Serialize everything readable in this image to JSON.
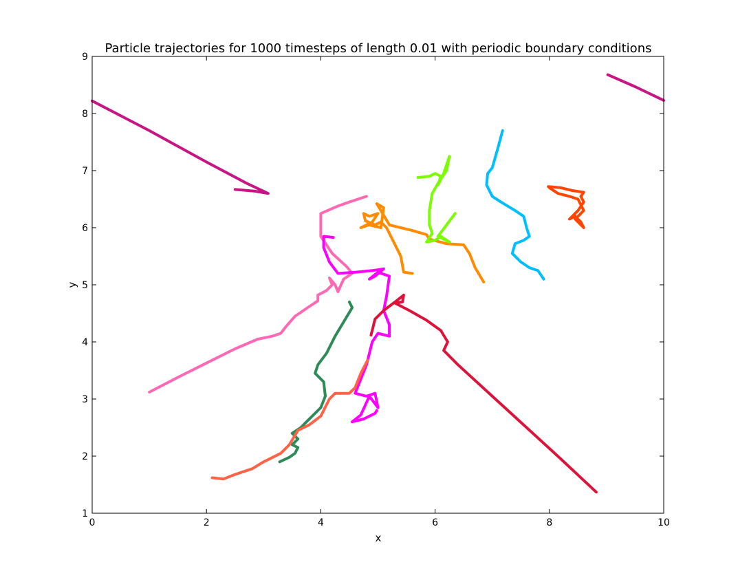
{
  "chart_data": {
    "type": "line",
    "title": "Particle trajectories for 1000 timesteps of length 0.01 with periodic boundary conditions",
    "xlabel": "x",
    "ylabel": "y",
    "xlim": [
      0,
      10
    ],
    "ylim": [
      1,
      9
    ],
    "xticks": [
      "0",
      "2",
      "4",
      "6",
      "8",
      "10"
    ],
    "yticks": [
      "1",
      "2",
      "3",
      "4",
      "5",
      "6",
      "7",
      "8",
      "9"
    ],
    "grid": false,
    "legend": false,
    "series": [
      {
        "color": "#c71585",
        "points": [
          [
            0.0,
            8.22
          ],
          [
            1.0,
            7.7
          ],
          [
            2.0,
            7.15
          ],
          [
            2.7,
            6.78
          ],
          [
            3.08,
            6.6
          ],
          [
            2.85,
            6.64
          ],
          [
            2.5,
            6.67
          ]
        ]
      },
      {
        "color": "#c71585",
        "points": [
          [
            9.02,
            8.68
          ],
          [
            9.5,
            8.47
          ],
          [
            10.0,
            8.23
          ]
        ]
      },
      {
        "color": "#ff69b4",
        "points": [
          [
            1.0,
            3.12
          ],
          [
            1.5,
            3.38
          ],
          [
            2.0,
            3.63
          ],
          [
            2.5,
            3.88
          ],
          [
            2.9,
            4.05
          ],
          [
            3.15,
            4.1
          ],
          [
            3.3,
            4.15
          ],
          [
            3.4,
            4.28
          ],
          [
            3.55,
            4.45
          ],
          [
            3.8,
            4.62
          ],
          [
            3.95,
            4.72
          ],
          [
            3.95,
            4.82
          ],
          [
            4.1,
            4.9
          ],
          [
            4.2,
            5.0
          ],
          [
            4.15,
            5.12
          ],
          [
            4.25,
            5.0
          ],
          [
            4.3,
            4.88
          ],
          [
            4.4,
            5.1
          ],
          [
            4.55,
            5.2
          ],
          [
            4.45,
            5.32
          ],
          [
            4.2,
            5.55
          ],
          [
            4.0,
            5.85
          ],
          [
            4.0,
            6.25
          ],
          [
            4.3,
            6.38
          ],
          [
            4.5,
            6.45
          ],
          [
            4.8,
            6.55
          ]
        ]
      },
      {
        "color": "#ff00ff",
        "points": [
          [
            4.22,
            5.83
          ],
          [
            4.05,
            5.85
          ],
          [
            4.05,
            5.65
          ],
          [
            4.15,
            5.4
          ],
          [
            4.3,
            5.2
          ],
          [
            4.6,
            5.22
          ],
          [
            4.9,
            5.25
          ],
          [
            5.1,
            5.28
          ],
          [
            4.95,
            5.15
          ],
          [
            4.85,
            5.1
          ],
          [
            5.0,
            5.22
          ],
          [
            5.2,
            5.15
          ],
          [
            5.15,
            4.8
          ],
          [
            5.1,
            4.55
          ],
          [
            5.2,
            4.3
          ],
          [
            5.2,
            4.1
          ],
          [
            5.0,
            4.15
          ],
          [
            4.9,
            4.0
          ],
          [
            4.8,
            3.6
          ],
          [
            4.7,
            3.35
          ],
          [
            4.6,
            3.1
          ],
          [
            4.8,
            3.05
          ],
          [
            4.95,
            3.1
          ],
          [
            5.0,
            2.85
          ],
          [
            4.85,
            3.05
          ],
          [
            4.7,
            2.72
          ],
          [
            4.55,
            2.6
          ],
          [
            4.75,
            2.65
          ],
          [
            4.95,
            2.75
          ],
          [
            4.98,
            2.8
          ]
        ]
      },
      {
        "color": "#dc143c",
        "points": [
          [
            4.88,
            4.12
          ],
          [
            4.95,
            4.4
          ],
          [
            5.1,
            4.55
          ],
          [
            5.3,
            4.7
          ],
          [
            5.45,
            4.82
          ],
          [
            5.43,
            4.7
          ],
          [
            5.3,
            4.68
          ],
          [
            5.55,
            4.55
          ],
          [
            5.85,
            4.38
          ],
          [
            6.1,
            4.2
          ],
          [
            6.22,
            4.0
          ],
          [
            6.15,
            3.85
          ],
          [
            6.4,
            3.6
          ],
          [
            7.0,
            3.05
          ],
          [
            7.6,
            2.5
          ],
          [
            8.2,
            1.95
          ],
          [
            8.82,
            1.37
          ]
        ]
      },
      {
        "color": "#2e8b57",
        "points": [
          [
            3.28,
            1.9
          ],
          [
            3.45,
            1.98
          ],
          [
            3.55,
            2.05
          ],
          [
            3.6,
            2.15
          ],
          [
            3.5,
            2.2
          ],
          [
            3.6,
            2.3
          ],
          [
            3.5,
            2.4
          ],
          [
            3.65,
            2.5
          ],
          [
            3.75,
            2.6
          ],
          [
            3.85,
            2.7
          ],
          [
            4.0,
            2.85
          ],
          [
            4.08,
            3.05
          ],
          [
            4.05,
            3.3
          ],
          [
            3.9,
            3.45
          ],
          [
            3.95,
            3.6
          ],
          [
            4.1,
            3.8
          ],
          [
            4.25,
            4.1
          ],
          [
            4.4,
            4.35
          ],
          [
            4.55,
            4.6
          ],
          [
            4.5,
            4.7
          ]
        ]
      },
      {
        "color": "#ff6347",
        "points": [
          [
            2.1,
            1.62
          ],
          [
            2.3,
            1.6
          ],
          [
            2.5,
            1.68
          ],
          [
            2.8,
            1.78
          ],
          [
            3.0,
            1.9
          ],
          [
            3.3,
            2.05
          ],
          [
            3.45,
            2.2
          ],
          [
            3.6,
            2.45
          ],
          [
            3.8,
            2.55
          ],
          [
            4.0,
            2.7
          ],
          [
            4.15,
            3.0
          ],
          [
            4.25,
            3.1
          ],
          [
            4.5,
            3.1
          ],
          [
            4.6,
            3.2
          ],
          [
            4.7,
            3.45
          ],
          [
            4.82,
            3.68
          ]
        ]
      },
      {
        "color": "#ff8c00",
        "points": [
          [
            5.6,
            5.2
          ],
          [
            5.45,
            5.22
          ],
          [
            5.4,
            5.5
          ],
          [
            5.25,
            5.8
          ],
          [
            5.15,
            6.0
          ],
          [
            5.05,
            6.1
          ],
          [
            4.95,
            6.05
          ],
          [
            4.78,
            6.12
          ],
          [
            4.75,
            6.25
          ],
          [
            4.85,
            6.2
          ],
          [
            5.0,
            6.25
          ],
          [
            4.9,
            6.1
          ],
          [
            4.7,
            6.0
          ],
          [
            4.85,
            6.05
          ],
          [
            5.05,
            6.0
          ],
          [
            5.1,
            6.35
          ],
          [
            4.98,
            6.42
          ],
          [
            5.2,
            6.05
          ],
          [
            5.6,
            5.95
          ],
          [
            5.85,
            5.88
          ],
          [
            5.9,
            5.8
          ],
          [
            6.2,
            5.72
          ],
          [
            6.5,
            5.7
          ],
          [
            6.6,
            5.55
          ],
          [
            6.7,
            5.3
          ],
          [
            6.85,
            5.05
          ]
        ]
      },
      {
        "color": "#7cfc00",
        "points": [
          [
            5.7,
            6.88
          ],
          [
            5.9,
            6.9
          ],
          [
            6.0,
            6.95
          ],
          [
            6.1,
            6.9
          ],
          [
            6.05,
            6.75
          ],
          [
            6.15,
            6.95
          ],
          [
            6.25,
            7.25
          ],
          [
            6.2,
            7.0
          ],
          [
            6.05,
            6.78
          ],
          [
            5.95,
            6.6
          ],
          [
            5.9,
            6.3
          ],
          [
            5.9,
            6.05
          ],
          [
            5.95,
            5.9
          ],
          [
            5.85,
            5.75
          ],
          [
            6.0,
            5.78
          ],
          [
            6.1,
            5.85
          ],
          [
            6.25,
            5.75
          ],
          [
            6.05,
            5.85
          ],
          [
            6.2,
            6.05
          ],
          [
            6.35,
            6.25
          ]
        ]
      },
      {
        "color": "#00bfff",
        "points": [
          [
            7.18,
            7.7
          ],
          [
            7.1,
            7.4
          ],
          [
            7.0,
            7.05
          ],
          [
            6.92,
            6.95
          ],
          [
            6.9,
            6.75
          ],
          [
            7.0,
            6.55
          ],
          [
            7.15,
            6.45
          ],
          [
            7.4,
            6.3
          ],
          [
            7.55,
            6.2
          ],
          [
            7.6,
            6.0
          ],
          [
            7.65,
            5.85
          ],
          [
            7.55,
            5.78
          ],
          [
            7.4,
            5.72
          ],
          [
            7.35,
            5.55
          ],
          [
            7.5,
            5.4
          ],
          [
            7.65,
            5.3
          ],
          [
            7.8,
            5.25
          ],
          [
            7.9,
            5.1
          ]
        ]
      },
      {
        "color": "#ff4500",
        "points": [
          [
            7.98,
            6.72
          ],
          [
            8.2,
            6.7
          ],
          [
            8.4,
            6.65
          ],
          [
            8.6,
            6.62
          ],
          [
            8.55,
            6.55
          ],
          [
            8.6,
            6.45
          ],
          [
            8.5,
            6.3
          ],
          [
            8.35,
            6.15
          ],
          [
            8.45,
            6.2
          ],
          [
            8.55,
            6.1
          ],
          [
            8.6,
            6.0
          ],
          [
            8.45,
            6.15
          ],
          [
            8.6,
            6.3
          ],
          [
            8.5,
            6.5
          ],
          [
            8.35,
            6.55
          ],
          [
            8.15,
            6.6
          ],
          [
            8.0,
            6.7
          ]
        ]
      }
    ]
  }
}
